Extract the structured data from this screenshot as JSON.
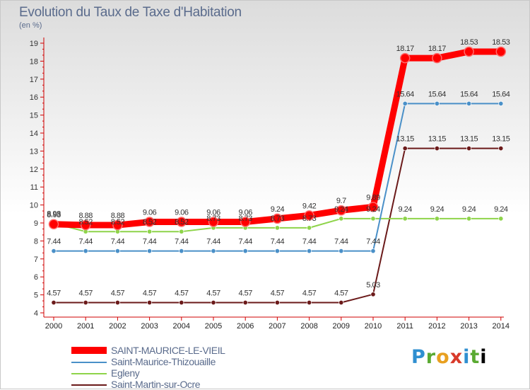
{
  "chart_data": {
    "type": "line",
    "title": "Evolution du Taux de Taxe d'Habitation",
    "subtitle": "(en %)",
    "x": [
      "2000",
      "2001",
      "2002",
      "2003",
      "2004",
      "2005",
      "2006",
      "2007",
      "2008",
      "2009",
      "2010",
      "2011",
      "2012",
      "2013",
      "2014"
    ],
    "ylim": [
      4,
      19
    ],
    "yticks": [
      4,
      5,
      6,
      7,
      8,
      9,
      10,
      11,
      12,
      13,
      14,
      15,
      16,
      17,
      18,
      19
    ],
    "grid": false,
    "legend_position": "bottom-left",
    "series": [
      {
        "name": "SAINT-MAURICE-LE-VIEIL",
        "color": "#ff0000",
        "values": [
          8.93,
          8.88,
          8.88,
          9.06,
          9.06,
          9.06,
          9.06,
          9.24,
          9.42,
          9.7,
          9.89,
          18.17,
          18.17,
          18.53,
          18.53
        ],
        "labels": [
          "8.93",
          "8.88",
          "8.88",
          "9.06",
          "9.06",
          "9.06",
          "9.06",
          "9.24",
          "9.42",
          "9.7",
          "9.89",
          "18.17",
          "18.17",
          "18.53",
          "18.53"
        ]
      },
      {
        "name": "Saint-Maurice-Thizouaille",
        "color": "#4a90c8",
        "values": [
          7.44,
          7.44,
          7.44,
          7.44,
          7.44,
          7.44,
          7.44,
          7.44,
          7.44,
          7.44,
          7.44,
          15.64,
          15.64,
          15.64,
          15.64
        ],
        "labels": [
          "7.44",
          "7.44",
          "7.44",
          "7.44",
          "7.44",
          "7.44",
          "7.44",
          "7.44",
          "7.44",
          "7.44",
          "7.44",
          "15.64",
          "15.64",
          "15.64",
          "15.64"
        ]
      },
      {
        "name": "Egleny",
        "color": "#8ed44a",
        "values": [
          8.98,
          8.52,
          8.52,
          8.52,
          8.52,
          8.73,
          8.73,
          8.73,
          8.73,
          9.24,
          9.24,
          9.24,
          9.24,
          9.24,
          9.24
        ],
        "labels": [
          "8.98",
          "8.52",
          "8.52",
          "8.52",
          "8.52",
          "8.73",
          "8.73",
          "8.73",
          "8.73",
          "9.24",
          "9.24",
          "9.24",
          "9.24",
          "9.24",
          "9.24"
        ]
      },
      {
        "name": "Saint-Martin-sur-Ocre",
        "color": "#6b1a1a",
        "values": [
          4.57,
          4.57,
          4.57,
          4.57,
          4.57,
          4.57,
          4.57,
          4.57,
          4.57,
          4.57,
          5.03,
          13.15,
          13.15,
          13.15,
          13.15
        ],
        "labels": [
          "4.57",
          "4.57",
          "4.57",
          "4.57",
          "4.57",
          "4.57",
          "4.57",
          "4.57",
          "4.57",
          "4.57",
          "5.03",
          "13.15",
          "13.15",
          "13.15",
          "13.15"
        ]
      }
    ]
  },
  "logo": [
    "P",
    "r",
    "o",
    "x",
    "i",
    "t",
    "i"
  ]
}
